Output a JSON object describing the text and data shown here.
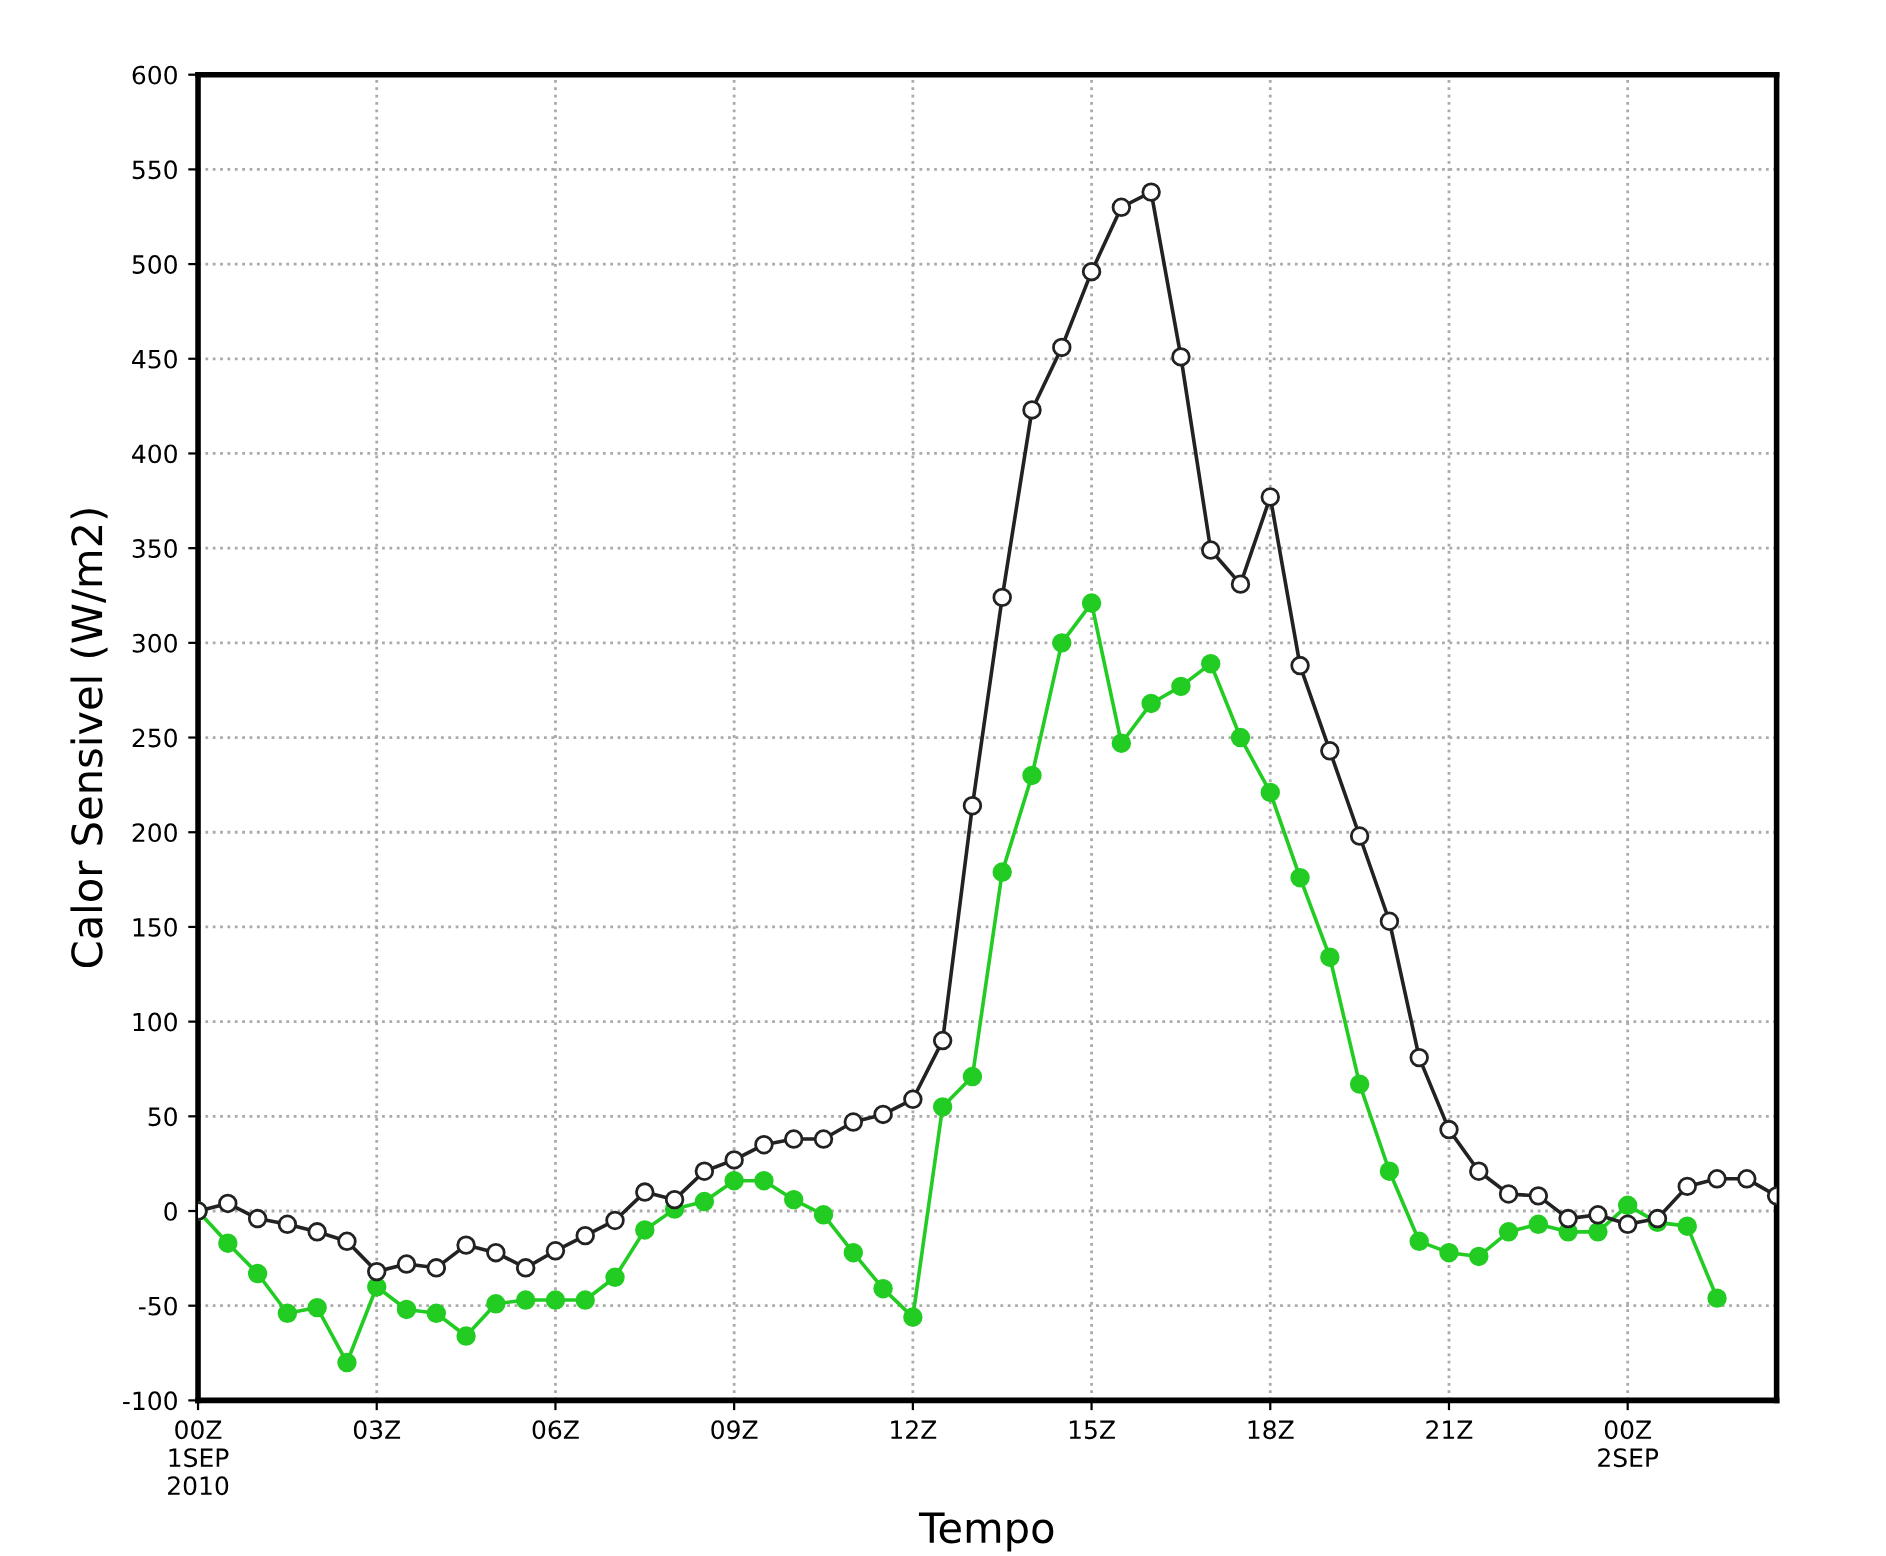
{
  "chart_data": {
    "type": "line",
    "xlabel": "Tempo",
    "ylabel": "Calor Sensivel (W/m2)",
    "x": [
      0,
      0.5,
      1,
      1.5,
      2,
      2.5,
      3,
      3.5,
      4,
      4.5,
      5,
      5.5,
      6,
      6.5,
      7,
      7.5,
      8,
      8.5,
      9,
      9.5,
      10,
      10.5,
      11,
      11.5,
      12,
      12.5,
      13,
      13.5,
      14,
      14.5,
      15,
      15.5,
      16,
      16.5,
      17,
      17.5,
      18,
      18.5,
      19,
      19.5,
      20,
      20.5,
      21,
      21.5,
      22,
      22.5,
      23,
      23.5,
      24,
      24.5,
      25,
      25.5,
      26,
      26.5
    ],
    "series": [
      {
        "color": "#222222",
        "values": [
          0,
          4,
          -4,
          -7,
          -11,
          -16,
          -32,
          -28,
          -30,
          -18,
          -22,
          -30,
          -21,
          -13,
          -5,
          10,
          6,
          21,
          27,
          35,
          38,
          38,
          47,
          51,
          59,
          90,
          214,
          324,
          423,
          456,
          496,
          530,
          538,
          451,
          349,
          331,
          377,
          288,
          243,
          198,
          153,
          81,
          43,
          21,
          9,
          8,
          -4,
          -2,
          -7,
          -4,
          13,
          17,
          17,
          8
        ]
      },
      {
        "color": "#22cc22",
        "values": [
          0,
          -17,
          -33,
          -54,
          -51,
          -80,
          -40,
          -52,
          -54,
          -66,
          -49,
          -47,
          -47,
          -47,
          -35,
          -10,
          1,
          5,
          16,
          16,
          6,
          -2,
          -22,
          -41,
          -56,
          55,
          71,
          179,
          230,
          300,
          321,
          247,
          268,
          277,
          289,
          250,
          221,
          176,
          134,
          67,
          21,
          -16,
          -22,
          -24,
          -11,
          -7,
          -11,
          -11,
          3,
          -6,
          -8,
          -46,
          null,
          null
        ]
      }
    ],
    "xlim": [
      0,
      26.5
    ],
    "xticks": [
      {
        "value": 0,
        "label": "00Z\n1SEP\n2010"
      },
      {
        "value": 3,
        "label": "03Z"
      },
      {
        "value": 6,
        "label": "06Z"
      },
      {
        "value": 9,
        "label": "09Z"
      },
      {
        "value": 12,
        "label": "12Z"
      },
      {
        "value": 15,
        "label": "15Z"
      },
      {
        "value": 18,
        "label": "18Z"
      },
      {
        "value": 21,
        "label": "21Z"
      },
      {
        "value": 24,
        "label": "00Z\n2SEP"
      }
    ],
    "ylim": [
      -100,
      600
    ],
    "yticks": [
      -100,
      -50,
      0,
      50,
      100,
      150,
      200,
      250,
      300,
      350,
      400,
      450,
      500,
      550,
      600
    ],
    "grid": true,
    "marker": "circle",
    "line_style": "solid"
  }
}
